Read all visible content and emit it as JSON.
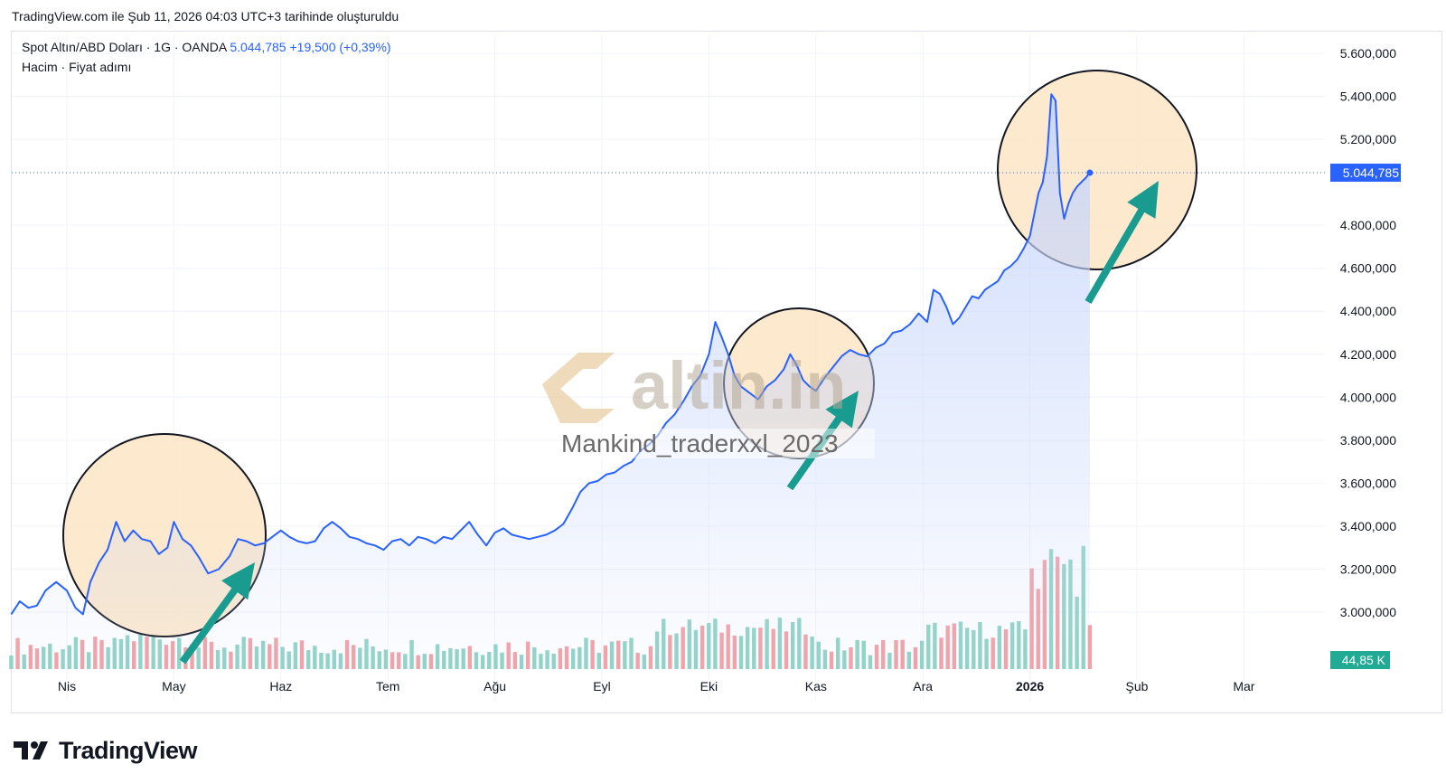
{
  "header": {
    "created_text": "TradingView.com ile Şub 11, 2026 04:03 UTC+3 tarihinde oluşturuldu"
  },
  "legend": {
    "symbol": "Spot Altın/ABD Doları · 1G · OANDA",
    "price": "5.044,785",
    "change": "+19,500 (+0,39%)",
    "line2": "Hacim · Fiyat adımı"
  },
  "watermark": {
    "brand": "altin.in",
    "text": "Mankind_traderxxl_2023"
  },
  "footer": {
    "brand": "TradingView"
  },
  "colors": {
    "line": "#2962ff",
    "area_top": "#c7d6fb",
    "vol_up": "#8fd3c6",
    "vol_down": "#f2a0a4",
    "circle_fill": "#fde5c6",
    "arrow": "#1a9b8f",
    "price_label_bg": "#2962ff",
    "volume_label_bg": "#22ab94"
  },
  "chart_data": {
    "type": "area",
    "title": "Spot Altın/ABD Doları · 1G · OANDA",
    "ylabel": "",
    "xlabel": "",
    "ylim": [
      2780000,
      5680000
    ],
    "y_ticks": [
      "5.600,000",
      "5.400,000",
      "5.200,000",
      "4.800,000",
      "4.600,000",
      "4.400,000",
      "4.200,000",
      "4.000,000",
      "3.800,000",
      "3.600,000",
      "3.400,000",
      "3.200,000",
      "3.000,000"
    ],
    "y_tick_values": [
      5600000,
      5400000,
      5200000,
      4800000,
      4600000,
      4400000,
      4200000,
      4000000,
      3800000,
      3600000,
      3400000,
      3200000,
      3000000
    ],
    "x_ticks": [
      {
        "label": "Nis",
        "month": 0
      },
      {
        "label": "May",
        "month": 1
      },
      {
        "label": "Haz",
        "month": 2
      },
      {
        "label": "Tem",
        "month": 3
      },
      {
        "label": "Ağu",
        "month": 4
      },
      {
        "label": "Eyl",
        "month": 5
      },
      {
        "label": "Eki",
        "month": 6
      },
      {
        "label": "Kas",
        "month": 7
      },
      {
        "label": "Ara",
        "month": 8
      },
      {
        "label": "2026",
        "month": 9,
        "bold": true
      },
      {
        "label": "Şub",
        "month": 10
      },
      {
        "label": "Mar",
        "month": 11
      }
    ],
    "x_units": "months since Nis 2025",
    "last_price_label": "5.044,785",
    "last_price": 5044785,
    "volume_label": "44,85 K",
    "series": [
      {
        "name": "Spot Altın/ABD Doları",
        "points": [
          [
            -0.52,
            2990000
          ],
          [
            -0.44,
            3050000
          ],
          [
            -0.36,
            3020000
          ],
          [
            -0.28,
            3030000
          ],
          [
            -0.2,
            3100000
          ],
          [
            -0.1,
            3140000
          ],
          [
            0.0,
            3100000
          ],
          [
            0.08,
            3020000
          ],
          [
            0.15,
            2990000
          ],
          [
            0.22,
            3140000
          ],
          [
            0.3,
            3230000
          ],
          [
            0.38,
            3290000
          ],
          [
            0.46,
            3420000
          ],
          [
            0.54,
            3330000
          ],
          [
            0.62,
            3380000
          ],
          [
            0.7,
            3340000
          ],
          [
            0.78,
            3330000
          ],
          [
            0.86,
            3270000
          ],
          [
            0.94,
            3300000
          ],
          [
            1.0,
            3420000
          ],
          [
            1.08,
            3340000
          ],
          [
            1.16,
            3310000
          ],
          [
            1.24,
            3250000
          ],
          [
            1.32,
            3180000
          ],
          [
            1.42,
            3200000
          ],
          [
            1.52,
            3260000
          ],
          [
            1.6,
            3340000
          ],
          [
            1.68,
            3330000
          ],
          [
            1.76,
            3310000
          ],
          [
            1.84,
            3320000
          ],
          [
            1.92,
            3350000
          ],
          [
            2.0,
            3380000
          ],
          [
            2.08,
            3350000
          ],
          [
            2.16,
            3330000
          ],
          [
            2.24,
            3320000
          ],
          [
            2.32,
            3330000
          ],
          [
            2.4,
            3390000
          ],
          [
            2.48,
            3420000
          ],
          [
            2.56,
            3390000
          ],
          [
            2.64,
            3350000
          ],
          [
            2.72,
            3340000
          ],
          [
            2.8,
            3320000
          ],
          [
            2.88,
            3310000
          ],
          [
            2.96,
            3290000
          ],
          [
            3.04,
            3330000
          ],
          [
            3.12,
            3340000
          ],
          [
            3.2,
            3310000
          ],
          [
            3.28,
            3350000
          ],
          [
            3.36,
            3340000
          ],
          [
            3.44,
            3320000
          ],
          [
            3.52,
            3350000
          ],
          [
            3.6,
            3340000
          ],
          [
            3.68,
            3380000
          ],
          [
            3.76,
            3420000
          ],
          [
            3.84,
            3360000
          ],
          [
            3.92,
            3310000
          ],
          [
            4.0,
            3370000
          ],
          [
            4.08,
            3390000
          ],
          [
            4.16,
            3360000
          ],
          [
            4.24,
            3350000
          ],
          [
            4.32,
            3340000
          ],
          [
            4.4,
            3350000
          ],
          [
            4.48,
            3360000
          ],
          [
            4.56,
            3380000
          ],
          [
            4.64,
            3410000
          ],
          [
            4.72,
            3480000
          ],
          [
            4.8,
            3560000
          ],
          [
            4.88,
            3600000
          ],
          [
            4.96,
            3610000
          ],
          [
            5.04,
            3640000
          ],
          [
            5.12,
            3650000
          ],
          [
            5.2,
            3680000
          ],
          [
            5.28,
            3700000
          ],
          [
            5.36,
            3750000
          ],
          [
            5.44,
            3780000
          ],
          [
            5.52,
            3820000
          ],
          [
            5.6,
            3880000
          ],
          [
            5.68,
            3920000
          ],
          [
            5.76,
            3980000
          ],
          [
            5.84,
            4050000
          ],
          [
            5.92,
            4100000
          ],
          [
            6.0,
            4200000
          ],
          [
            6.06,
            4350000
          ],
          [
            6.12,
            4280000
          ],
          [
            6.18,
            4200000
          ],
          [
            6.24,
            4100000
          ],
          [
            6.3,
            4050000
          ],
          [
            6.38,
            4020000
          ],
          [
            6.46,
            3990000
          ],
          [
            6.54,
            4050000
          ],
          [
            6.62,
            4080000
          ],
          [
            6.7,
            4130000
          ],
          [
            6.76,
            4200000
          ],
          [
            6.82,
            4150000
          ],
          [
            6.88,
            4080000
          ],
          [
            6.94,
            4050000
          ],
          [
            7.0,
            4030000
          ],
          [
            7.08,
            4090000
          ],
          [
            7.16,
            4140000
          ],
          [
            7.24,
            4190000
          ],
          [
            7.32,
            4220000
          ],
          [
            7.4,
            4200000
          ],
          [
            7.48,
            4190000
          ],
          [
            7.56,
            4230000
          ],
          [
            7.64,
            4250000
          ],
          [
            7.72,
            4300000
          ],
          [
            7.8,
            4310000
          ],
          [
            7.88,
            4340000
          ],
          [
            7.96,
            4390000
          ],
          [
            8.04,
            4350000
          ],
          [
            8.1,
            4500000
          ],
          [
            8.16,
            4480000
          ],
          [
            8.22,
            4420000
          ],
          [
            8.28,
            4340000
          ],
          [
            8.34,
            4370000
          ],
          [
            8.4,
            4420000
          ],
          [
            8.46,
            4470000
          ],
          [
            8.52,
            4460000
          ],
          [
            8.58,
            4500000
          ],
          [
            8.64,
            4520000
          ],
          [
            8.7,
            4540000
          ],
          [
            8.76,
            4590000
          ],
          [
            8.82,
            4610000
          ],
          [
            8.88,
            4640000
          ],
          [
            8.94,
            4690000
          ],
          [
            9.0,
            4750000
          ],
          [
            9.04,
            4850000
          ],
          [
            9.08,
            4950000
          ],
          [
            9.12,
            5000000
          ],
          [
            9.16,
            5120000
          ],
          [
            9.2,
            5410000
          ],
          [
            9.24,
            5380000
          ],
          [
            9.28,
            4950000
          ],
          [
            9.32,
            4830000
          ],
          [
            9.36,
            4900000
          ],
          [
            9.4,
            4950000
          ],
          [
            9.44,
            4980000
          ],
          [
            9.48,
            5000000
          ],
          [
            9.52,
            5020000
          ],
          [
            9.56,
            5044785
          ]
        ]
      }
    ],
    "volume_up_down_pattern": "Bars: teal = up day, red = down day; spikes around Ağu and late Ocak/Şub."
  }
}
